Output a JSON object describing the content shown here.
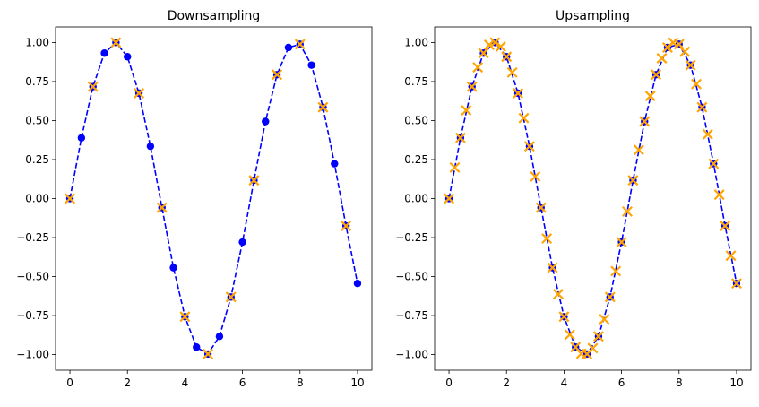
{
  "chart_data": [
    {
      "type": "line",
      "title": "Downsampling",
      "xlim": [
        -0.5,
        10.5
      ],
      "ylim": [
        -1.1,
        1.1
      ],
      "xticks": [
        0,
        2,
        4,
        6,
        8,
        10
      ],
      "xtick_labels": [
        "0",
        "2",
        "4",
        "6",
        "8",
        "10"
      ],
      "yticks": [
        1.0,
        0.75,
        0.5,
        0.25,
        0.0,
        -0.25,
        -0.5,
        -0.75,
        -1.0
      ],
      "ytick_labels": [
        "1.00",
        "0.75",
        "0.50",
        "0.25",
        "0.00",
        "−0.25",
        "−0.50",
        "−0.75",
        "−1.00"
      ],
      "grid": false,
      "series": [
        {
          "style": "dashed-line-circle-markers",
          "color": "#0000ff",
          "x": [
            0,
            0.4,
            0.8,
            1.2,
            1.6,
            2.0,
            2.4,
            2.8,
            3.2,
            3.6,
            4.0,
            4.4,
            4.8,
            5.2,
            5.6,
            6.0,
            6.4,
            6.8,
            7.2,
            7.6,
            8.0,
            8.4,
            8.8,
            9.2,
            9.6,
            10.0
          ],
          "y": [
            0.0,
            0.389,
            0.717,
            0.932,
            1.0,
            0.909,
            0.675,
            0.335,
            -0.058,
            -0.443,
            -0.757,
            -0.952,
            -0.996,
            -0.883,
            -0.631,
            -0.279,
            0.117,
            0.494,
            0.794,
            0.968,
            0.989,
            0.855,
            0.585,
            0.223,
            -0.175,
            -0.544
          ]
        },
        {
          "style": "x-markers",
          "color": "#ffa500",
          "x": [
            0,
            0.8,
            1.6,
            2.4,
            3.2,
            4.0,
            4.8,
            5.6,
            6.4,
            7.2,
            8.0,
            8.8,
            9.6
          ],
          "y": [
            0.0,
            0.717,
            1.0,
            0.675,
            -0.058,
            -0.757,
            -0.996,
            -0.631,
            0.117,
            0.794,
            0.989,
            0.585,
            -0.175
          ]
        }
      ]
    },
    {
      "type": "line",
      "title": "Upsampling",
      "xlim": [
        -0.5,
        10.5
      ],
      "ylim": [
        -1.1,
        1.1
      ],
      "xticks": [
        0,
        2,
        4,
        6,
        8,
        10
      ],
      "xtick_labels": [
        "0",
        "2",
        "4",
        "6",
        "8",
        "10"
      ],
      "yticks": [
        1.0,
        0.75,
        0.5,
        0.25,
        0.0,
        -0.25,
        -0.5,
        -0.75,
        -1.0
      ],
      "ytick_labels": [
        "1.00",
        "0.75",
        "0.50",
        "0.25",
        "0.00",
        "−0.25",
        "−0.50",
        "−0.75",
        "−1.00"
      ],
      "grid": false,
      "series": [
        {
          "style": "dashed-line-circle-markers",
          "color": "#0000ff",
          "x": [
            0,
            0.4,
            0.8,
            1.2,
            1.6,
            2.0,
            2.4,
            2.8,
            3.2,
            3.6,
            4.0,
            4.4,
            4.8,
            5.2,
            5.6,
            6.0,
            6.4,
            6.8,
            7.2,
            7.6,
            8.0,
            8.4,
            8.8,
            9.2,
            9.6,
            10.0
          ],
          "y": [
            0.0,
            0.389,
            0.717,
            0.932,
            1.0,
            0.909,
            0.675,
            0.335,
            -0.058,
            -0.443,
            -0.757,
            -0.952,
            -0.996,
            -0.883,
            -0.631,
            -0.279,
            0.117,
            0.494,
            0.794,
            0.968,
            0.989,
            0.855,
            0.585,
            0.223,
            -0.175,
            -0.544
          ]
        },
        {
          "style": "x-markers",
          "color": "#ffa500",
          "x": [
            0,
            0.2,
            0.4,
            0.6,
            0.8,
            1.0,
            1.2,
            1.4,
            1.6,
            1.8,
            2.0,
            2.2,
            2.4,
            2.6,
            2.8,
            3.0,
            3.2,
            3.4,
            3.6,
            3.8,
            4.0,
            4.2,
            4.4,
            4.6,
            4.8,
            5.0,
            5.2,
            5.4,
            5.6,
            5.8,
            6.0,
            6.2,
            6.4,
            6.6,
            6.8,
            7.0,
            7.2,
            7.4,
            7.6,
            7.8,
            8.0,
            8.2,
            8.4,
            8.6,
            8.8,
            9.0,
            9.2,
            9.4,
            9.6,
            9.8,
            10.0
          ],
          "y": [
            0.0,
            0.199,
            0.389,
            0.565,
            0.717,
            0.841,
            0.932,
            0.985,
            1.0,
            0.974,
            0.909,
            0.808,
            0.675,
            0.516,
            0.335,
            0.141,
            -0.058,
            -0.256,
            -0.443,
            -0.612,
            -0.757,
            -0.872,
            -0.952,
            -0.994,
            -0.996,
            -0.959,
            -0.883,
            -0.773,
            -0.631,
            -0.465,
            -0.279,
            -0.083,
            0.117,
            0.312,
            0.494,
            0.657,
            0.794,
            0.899,
            0.968,
            0.999,
            0.989,
            0.941,
            0.855,
            0.734,
            0.585,
            0.412,
            0.223,
            0.025,
            -0.175,
            -0.366,
            -0.544
          ]
        }
      ]
    }
  ]
}
